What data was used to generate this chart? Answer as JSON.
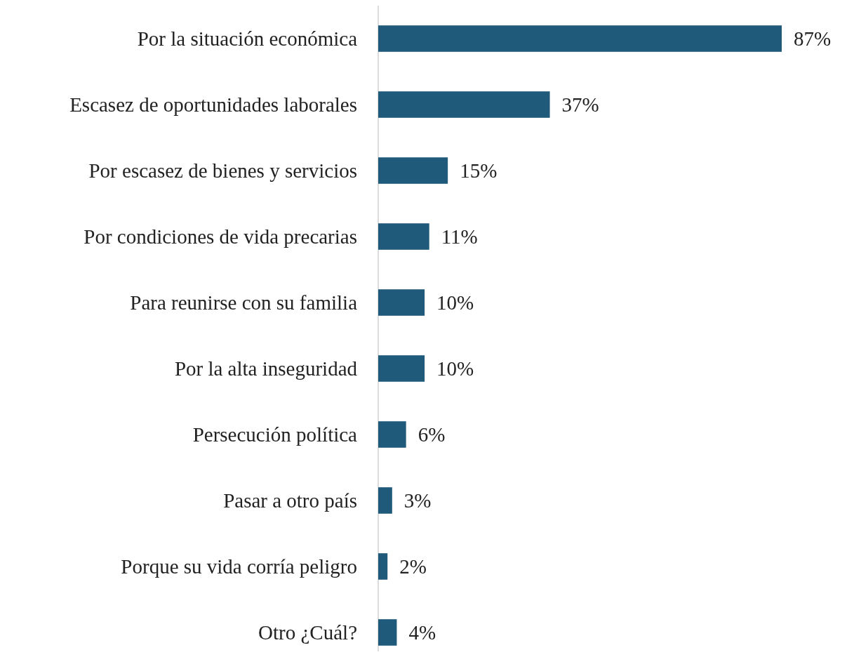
{
  "chart_data": {
    "type": "bar",
    "orientation": "horizontal",
    "color": "#1f5a7a",
    "categories": [
      "Por la situación económica",
      "Escasez de oportunidades laborales",
      "Por escasez de bienes y servicios",
      "Por condiciones de vida precarias",
      "Para reunirse con su familia",
      "Por la alta inseguridad",
      "Persecución política",
      "Pasar a otro país",
      "Porque su vida corría peligro",
      "Otro ¿Cuál?"
    ],
    "values": [
      87,
      37,
      15,
      11,
      10,
      10,
      6,
      3,
      2,
      4
    ],
    "value_labels": [
      "87%",
      "37%",
      "15%",
      "11%",
      "10%",
      "10%",
      "6%",
      "3%",
      "2%",
      "4%"
    ]
  }
}
